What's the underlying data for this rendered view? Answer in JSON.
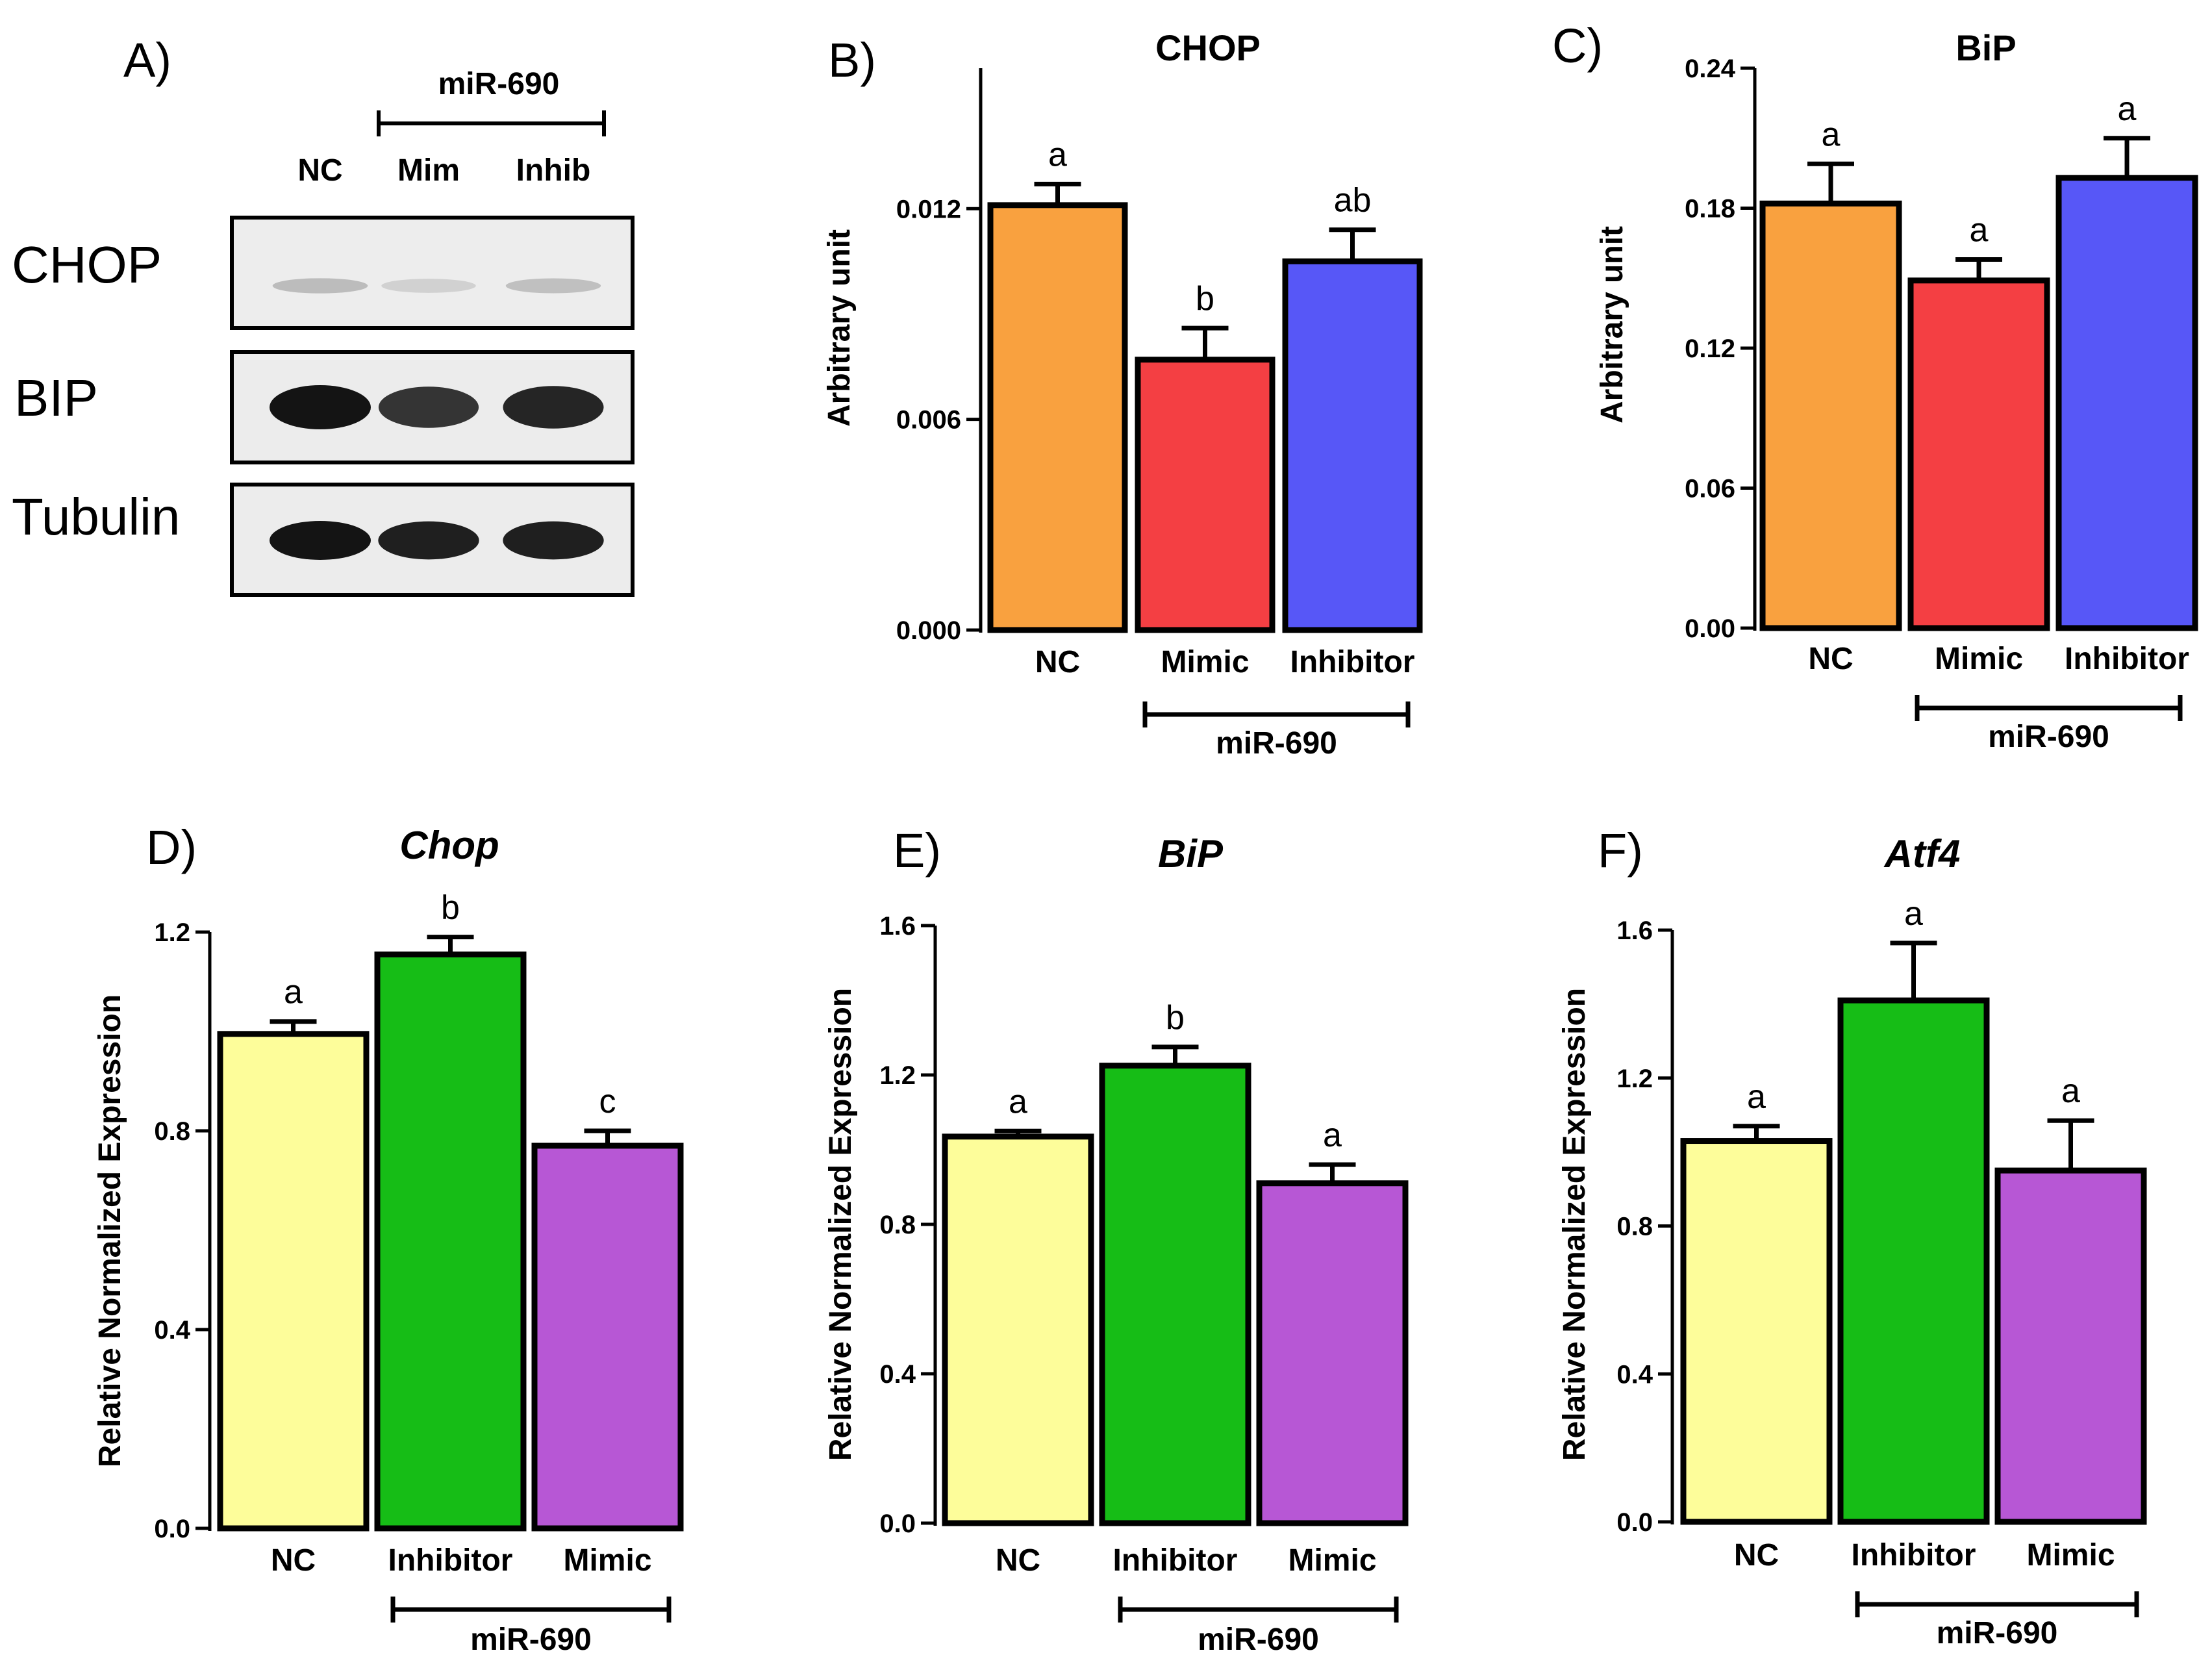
{
  "figure": {
    "panel_labels": [
      "A)",
      "B)",
      "C)",
      "D)",
      "E)",
      "F)"
    ]
  },
  "colors": {
    "NC_orange": "#f9a13f",
    "Mimic_red": "#f43f43",
    "Inhibitor_blue": "#5757f7",
    "NC_yellow": "#fdfd9a",
    "Inhibitor_green": "#16bd16",
    "Mimic_purple": "#b757d5",
    "axis": "#000000"
  },
  "western": {
    "group_label": "miR-690",
    "lanes": [
      "NC",
      "Mim",
      "Inhib"
    ],
    "rows": [
      {
        "label": "CHOP",
        "intensity": [
          0.22,
          0.12,
          0.2
        ]
      },
      {
        "label": "BIP",
        "intensity": [
          1.0,
          0.85,
          0.92
        ]
      },
      {
        "label": "Tubulin",
        "intensity": [
          1.0,
          0.95,
          0.95
        ]
      }
    ]
  },
  "chart_data": [
    {
      "id": "B",
      "type": "bar",
      "title": "CHOP",
      "title_italic": false,
      "ylabel": "Arbitrary unit",
      "xlabel": "",
      "categories": [
        "NC",
        "Mimic",
        "Inhibitor"
      ],
      "values": [
        0.0121,
        0.0077,
        0.0105
      ],
      "errors": [
        0.0006,
        0.0009,
        0.0009
      ],
      "sig_letters": [
        "a",
        "b",
        "ab"
      ],
      "colors": [
        "#f9a13f",
        "#f43f43",
        "#5757f7"
      ],
      "ylim": [
        0,
        0.016
      ],
      "yticks": [
        0.0,
        0.006,
        0.012
      ],
      "ytick_labels": [
        "0.000",
        "0.006",
        "0.012"
      ],
      "group_label": "miR-690",
      "group_span": [
        1,
        2
      ]
    },
    {
      "id": "C",
      "type": "bar",
      "title": "BiP",
      "title_italic": false,
      "ylabel": "Arbitrary unit",
      "xlabel": "",
      "categories": [
        "NC",
        "Mimic",
        "Inhibitor"
      ],
      "values": [
        0.182,
        0.149,
        0.193
      ],
      "errors": [
        0.017,
        0.009,
        0.017
      ],
      "sig_letters": [
        "a",
        "a",
        "a"
      ],
      "colors": [
        "#f9a13f",
        "#f43f43",
        "#5757f7"
      ],
      "ylim": [
        0,
        0.24
      ],
      "yticks": [
        0.0,
        0.06,
        0.12,
        0.18,
        0.24
      ],
      "ytick_labels": [
        "0.00",
        "0.06",
        "0.12",
        "0.18",
        "0.24"
      ],
      "group_label": "miR-690",
      "group_span": [
        1,
        2
      ]
    },
    {
      "id": "D",
      "type": "bar",
      "title": "Chop",
      "title_italic": true,
      "ylabel": "Relative Normalized Expression",
      "xlabel": "",
      "categories": [
        "NC",
        "Inhibitor",
        "Mimic"
      ],
      "values": [
        0.995,
        1.155,
        0.77
      ],
      "errors": [
        0.025,
        0.035,
        0.03
      ],
      "sig_letters": [
        "a",
        "b",
        "c"
      ],
      "colors": [
        "#fdfd9a",
        "#16bd16",
        "#b757d5"
      ],
      "ylim": [
        0,
        1.2
      ],
      "yticks": [
        0.0,
        0.4,
        0.8,
        1.2
      ],
      "ytick_labels": [
        "0.0",
        "0.4",
        "0.8",
        "1.2"
      ],
      "group_label": "miR-690",
      "group_span": [
        1,
        2
      ]
    },
    {
      "id": "E",
      "type": "bar",
      "title": "BiP",
      "title_italic": true,
      "ylabel": "Relative Normalized Expression",
      "xlabel": "",
      "categories": [
        "NC",
        "Inhibitor",
        "Mimic"
      ],
      "values": [
        1.035,
        1.225,
        0.91
      ],
      "errors": [
        0.015,
        0.05,
        0.05
      ],
      "sig_letters": [
        "a",
        "b",
        "a"
      ],
      "colors": [
        "#fdfd9a",
        "#16bd16",
        "#b757d5"
      ],
      "ylim": [
        0,
        1.6
      ],
      "yticks": [
        0.0,
        0.4,
        0.8,
        1.2,
        1.6
      ],
      "ytick_labels": [
        "0.0",
        "0.4",
        "0.8",
        "1.2",
        "1.6"
      ],
      "group_label": "miR-690",
      "group_span": [
        1,
        2
      ]
    },
    {
      "id": "F",
      "type": "bar",
      "title": "Atf4",
      "title_italic": true,
      "ylabel": "Relative Normalized Expression",
      "xlabel": "",
      "categories": [
        "NC",
        "Inhibitor",
        "Mimic"
      ],
      "values": [
        1.03,
        1.41,
        0.95
      ],
      "errors": [
        0.04,
        0.155,
        0.135
      ],
      "sig_letters": [
        "a",
        "a",
        "a"
      ],
      "colors": [
        "#fdfd9a",
        "#16bd16",
        "#b757d5"
      ],
      "ylim": [
        0,
        1.6
      ],
      "yticks": [
        0.0,
        0.4,
        0.8,
        1.2,
        1.6
      ],
      "ytick_labels": [
        "0.0",
        "0.4",
        "0.8",
        "1.2",
        "1.6"
      ],
      "group_label": "miR-690",
      "group_span": [
        1,
        2
      ]
    }
  ]
}
